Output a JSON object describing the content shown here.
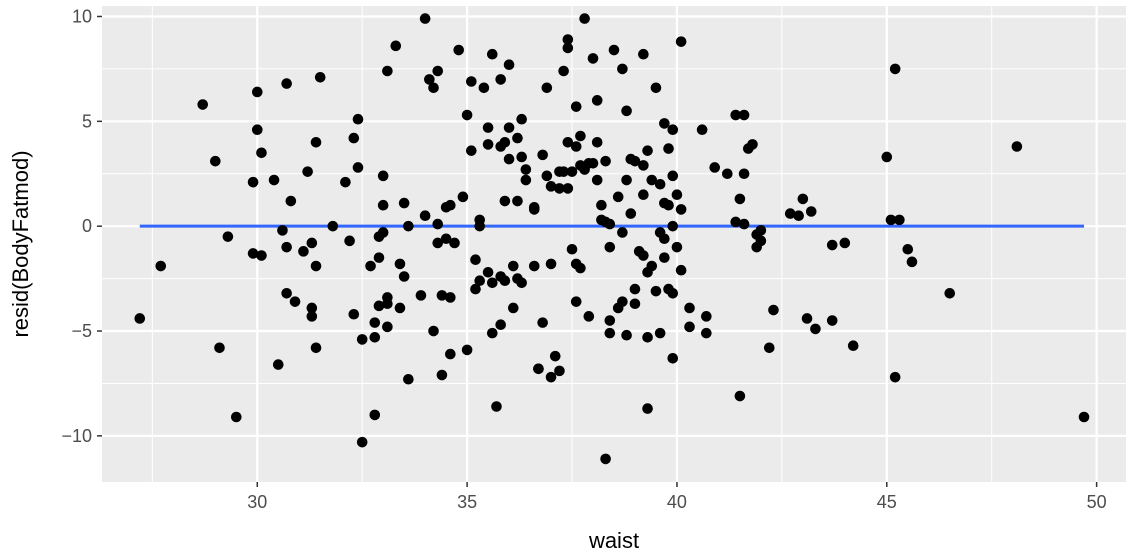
{
  "chart_data": {
    "type": "scatter",
    "xlabel": "waist",
    "ylabel": "resid(BodyFatmod)",
    "xlim": [
      26.3,
      50.7
    ],
    "ylim": [
      -12.2,
      10.5
    ],
    "x_ticks": [
      30,
      35,
      40,
      45,
      50
    ],
    "y_ticks": [
      10,
      5,
      0,
      -5,
      -10
    ],
    "x_tick_labels": [
      "30",
      "35",
      "40",
      "45",
      "50"
    ],
    "y_tick_labels": [
      "10",
      "5",
      "0",
      "−5",
      "−10"
    ],
    "grid": true,
    "panel_background": "#ebebeb",
    "grid_color": "#ffffff",
    "point_color": "#000000",
    "line_color": "#3366ff",
    "reference_line": {
      "y": 0,
      "x_start": 27.2,
      "x_end": 49.7
    },
    "points": [
      [
        27.2,
        -4.4
      ],
      [
        27.7,
        -1.9
      ],
      [
        28.7,
        5.8
      ],
      [
        29.0,
        3.1
      ],
      [
        29.1,
        -5.8
      ],
      [
        29.3,
        -0.5
      ],
      [
        29.5,
        -9.1
      ],
      [
        29.9,
        2.1
      ],
      [
        29.9,
        -1.3
      ],
      [
        30.0,
        4.6
      ],
      [
        30.0,
        6.4
      ],
      [
        30.1,
        -1.4
      ],
      [
        30.1,
        3.5
      ],
      [
        30.4,
        2.2
      ],
      [
        30.5,
        -6.6
      ],
      [
        30.6,
        -0.2
      ],
      [
        30.7,
        6.8
      ],
      [
        30.7,
        -3.2
      ],
      [
        30.8,
        1.2
      ],
      [
        30.7,
        -1.0
      ],
      [
        30.9,
        -3.6
      ],
      [
        31.1,
        -1.2
      ],
      [
        31.2,
        2.6
      ],
      [
        31.3,
        -4.3
      ],
      [
        31.4,
        -1.9
      ],
      [
        31.3,
        -0.8
      ],
      [
        31.4,
        4.0
      ],
      [
        31.4,
        -5.8
      ],
      [
        31.5,
        7.1
      ],
      [
        31.3,
        -3.9
      ],
      [
        31.8,
        0.0
      ],
      [
        32.1,
        2.1
      ],
      [
        32.2,
        -0.7
      ],
      [
        32.3,
        -4.2
      ],
      [
        32.3,
        4.2
      ],
      [
        32.4,
        5.1
      ],
      [
        32.5,
        -10.3
      ],
      [
        32.4,
        2.8
      ],
      [
        32.5,
        -5.4
      ],
      [
        32.9,
        -0.5
      ],
      [
        32.7,
        -1.9
      ],
      [
        32.8,
        -4.6
      ],
      [
        32.8,
        -9.0
      ],
      [
        32.9,
        -1.5
      ],
      [
        32.9,
        -3.8
      ],
      [
        32.8,
        -5.3
      ],
      [
        33.0,
        -0.3
      ],
      [
        33.0,
        1.0
      ],
      [
        33.0,
        2.4
      ],
      [
        33.1,
        7.4
      ],
      [
        33.1,
        -3.4
      ],
      [
        33.1,
        -4.8
      ],
      [
        33.1,
        -3.7
      ],
      [
        33.3,
        8.6
      ],
      [
        33.4,
        -1.8
      ],
      [
        33.4,
        -3.9
      ],
      [
        33.5,
        -2.4
      ],
      [
        33.5,
        1.1
      ],
      [
        33.6,
        0.0
      ],
      [
        33.6,
        -7.3
      ],
      [
        33.9,
        -3.3
      ],
      [
        34.0,
        0.5
      ],
      [
        34.0,
        9.9
      ],
      [
        34.1,
        7.0
      ],
      [
        34.2,
        6.6
      ],
      [
        34.3,
        7.4
      ],
      [
        34.3,
        0.1
      ],
      [
        34.3,
        -0.8
      ],
      [
        34.2,
        -5.0
      ],
      [
        34.4,
        -3.3
      ],
      [
        34.4,
        -7.1
      ],
      [
        34.5,
        -0.6
      ],
      [
        34.5,
        0.9
      ],
      [
        34.6,
        1.0
      ],
      [
        34.6,
        -3.4
      ],
      [
        34.6,
        -6.1
      ],
      [
        34.7,
        -0.8
      ],
      [
        34.8,
        8.4
      ],
      [
        34.9,
        1.4
      ],
      [
        35.0,
        -5.9
      ],
      [
        35.0,
        5.3
      ],
      [
        35.1,
        3.6
      ],
      [
        35.1,
        6.9
      ],
      [
        35.2,
        -3.0
      ],
      [
        35.2,
        -1.6
      ],
      [
        35.3,
        0.0
      ],
      [
        35.3,
        0.3
      ],
      [
        35.3,
        -2.6
      ],
      [
        35.4,
        6.6
      ],
      [
        35.5,
        4.7
      ],
      [
        35.5,
        -2.2
      ],
      [
        35.5,
        3.9
      ],
      [
        35.6,
        -5.1
      ],
      [
        35.6,
        -2.7
      ],
      [
        35.6,
        8.2
      ],
      [
        35.7,
        -8.6
      ],
      [
        35.8,
        3.8
      ],
      [
        35.8,
        -4.7
      ],
      [
        35.8,
        -2.4
      ],
      [
        35.8,
        7.0
      ],
      [
        35.9,
        4.0
      ],
      [
        35.9,
        -2.6
      ],
      [
        36.0,
        4.7
      ],
      [
        35.9,
        1.2
      ],
      [
        36.0,
        7.7
      ],
      [
        36.0,
        3.2
      ],
      [
        36.1,
        -3.9
      ],
      [
        36.1,
        -1.9
      ],
      [
        36.2,
        4.2
      ],
      [
        36.2,
        1.2
      ],
      [
        36.2,
        -2.5
      ],
      [
        36.3,
        -2.7
      ],
      [
        36.3,
        5.1
      ],
      [
        36.3,
        3.3
      ],
      [
        36.4,
        2.7
      ],
      [
        36.4,
        2.2
      ],
      [
        36.6,
        0.9
      ],
      [
        36.6,
        -1.9
      ],
      [
        36.6,
        0.8
      ],
      [
        36.7,
        -6.8
      ],
      [
        36.7,
        -6.8
      ],
      [
        36.8,
        3.4
      ],
      [
        36.8,
        -4.6
      ],
      [
        36.9,
        2.4
      ],
      [
        36.9,
        6.6
      ],
      [
        37.0,
        1.9
      ],
      [
        37.0,
        -7.2
      ],
      [
        37.0,
        -1.8
      ],
      [
        37.1,
        -6.2
      ],
      [
        37.2,
        2.6
      ],
      [
        37.2,
        1.8
      ],
      [
        37.2,
        -6.9
      ],
      [
        37.3,
        7.4
      ],
      [
        37.3,
        2.6
      ],
      [
        37.4,
        8.9
      ],
      [
        37.4,
        8.5
      ],
      [
        37.4,
        4.0
      ],
      [
        37.4,
        1.8
      ],
      [
        37.5,
        -1.1
      ],
      [
        37.5,
        2.6
      ],
      [
        37.6,
        3.8
      ],
      [
        37.6,
        -3.6
      ],
      [
        37.6,
        -1.8
      ],
      [
        37.6,
        5.7
      ],
      [
        37.7,
        4.3
      ],
      [
        37.7,
        -2.0
      ],
      [
        37.7,
        2.9
      ],
      [
        37.8,
        2.7
      ],
      [
        37.8,
        9.9
      ],
      [
        37.9,
        3.0
      ],
      [
        37.9,
        -4.3
      ],
      [
        38.0,
        3.0
      ],
      [
        38.0,
        8.0
      ],
      [
        38.1,
        6.0
      ],
      [
        38.1,
        4.0
      ],
      [
        38.1,
        2.2
      ],
      [
        38.2,
        1.0
      ],
      [
        38.2,
        0.3
      ],
      [
        38.3,
        3.1
      ],
      [
        38.3,
        0.2
      ],
      [
        38.3,
        -11.1
      ],
      [
        38.4,
        0.1
      ],
      [
        38.4,
        -4.5
      ],
      [
        38.4,
        -5.1
      ],
      [
        38.4,
        -1.0
      ],
      [
        38.5,
        8.4
      ],
      [
        38.6,
        -3.9
      ],
      [
        38.6,
        1.4
      ],
      [
        38.7,
        -3.6
      ],
      [
        38.7,
        7.5
      ],
      [
        38.7,
        -0.3
      ],
      [
        38.8,
        2.2
      ],
      [
        38.8,
        5.5
      ],
      [
        38.8,
        -5.2
      ],
      [
        38.9,
        0.6
      ],
      [
        38.9,
        3.2
      ],
      [
        39.0,
        -3.7
      ],
      [
        39.0,
        3.1
      ],
      [
        39.0,
        -3.0
      ],
      [
        39.1,
        -1.2
      ],
      [
        39.2,
        8.2
      ],
      [
        39.2,
        -1.4
      ],
      [
        39.2,
        1.5
      ],
      [
        39.2,
        2.9
      ],
      [
        39.3,
        3.6
      ],
      [
        39.3,
        -5.3
      ],
      [
        39.3,
        -2.2
      ],
      [
        39.3,
        -8.7
      ],
      [
        39.4,
        2.2
      ],
      [
        39.4,
        -1.9
      ],
      [
        39.5,
        -3.1
      ],
      [
        39.5,
        6.6
      ],
      [
        39.6,
        -5.1
      ],
      [
        39.6,
        -0.3
      ],
      [
        39.6,
        2.0
      ],
      [
        39.7,
        4.9
      ],
      [
        39.7,
        1.1
      ],
      [
        39.7,
        -1.5
      ],
      [
        39.7,
        -0.6
      ],
      [
        39.8,
        3.7
      ],
      [
        39.8,
        1.0
      ],
      [
        39.8,
        -3.0
      ],
      [
        39.9,
        4.6
      ],
      [
        39.9,
        0.0
      ],
      [
        39.9,
        2.4
      ],
      [
        39.9,
        -3.2
      ],
      [
        39.9,
        -6.3
      ],
      [
        40.0,
        1.5
      ],
      [
        40.0,
        -1.0
      ],
      [
        40.1,
        0.8
      ],
      [
        40.1,
        -2.1
      ],
      [
        40.1,
        8.8
      ],
      [
        40.3,
        -4.8
      ],
      [
        40.3,
        -3.9
      ],
      [
        40.6,
        4.6
      ],
      [
        40.7,
        -4.3
      ],
      [
        40.7,
        -5.1
      ],
      [
        40.9,
        2.8
      ],
      [
        41.2,
        2.5
      ],
      [
        41.4,
        5.3
      ],
      [
        41.4,
        0.2
      ],
      [
        41.5,
        -8.1
      ],
      [
        41.5,
        1.3
      ],
      [
        41.6,
        5.3
      ],
      [
        41.6,
        0.1
      ],
      [
        41.6,
        2.5
      ],
      [
        41.7,
        3.7
      ],
      [
        41.8,
        3.9
      ],
      [
        41.9,
        -1.0
      ],
      [
        41.9,
        -0.4
      ],
      [
        42.0,
        -0.7
      ],
      [
        42.0,
        -0.2
      ],
      [
        42.2,
        -5.8
      ],
      [
        42.3,
        -4.0
      ],
      [
        42.7,
        0.6
      ],
      [
        42.9,
        0.5
      ],
      [
        43.0,
        1.3
      ],
      [
        43.1,
        -4.4
      ],
      [
        43.2,
        0.7
      ],
      [
        43.3,
        -4.9
      ],
      [
        43.7,
        -0.9
      ],
      [
        43.7,
        -4.5
      ],
      [
        44.0,
        -0.8
      ],
      [
        44.2,
        -5.7
      ],
      [
        45.0,
        3.3
      ],
      [
        45.1,
        0.3
      ],
      [
        45.2,
        7.5
      ],
      [
        45.2,
        -7.2
      ],
      [
        45.3,
        0.3
      ],
      [
        45.5,
        -1.1
      ],
      [
        45.6,
        -1.7
      ],
      [
        46.5,
        -3.2
      ],
      [
        48.1,
        3.8
      ],
      [
        49.7,
        -9.1
      ]
    ]
  }
}
